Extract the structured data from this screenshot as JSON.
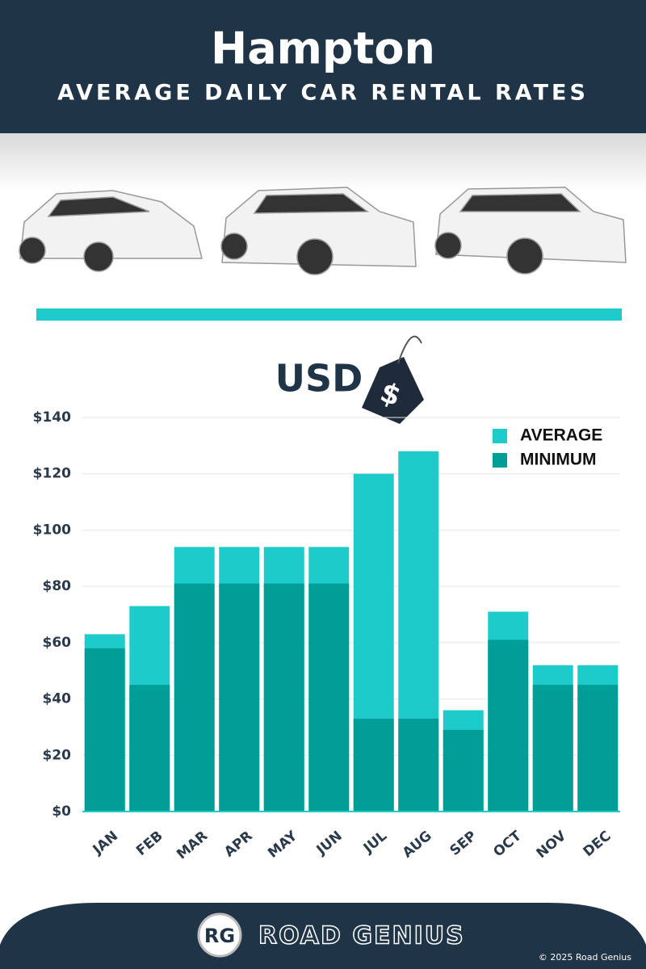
{
  "chart_data": {
    "type": "bar",
    "title": "Hampton",
    "subtitle": "AVERAGE DAILY CAR RENTAL RATES",
    "unit_label": "USD",
    "currency_symbol": "$",
    "categories": [
      "JAN",
      "FEB",
      "MAR",
      "APR",
      "MAY",
      "JUN",
      "JUL",
      "AUG",
      "SEP",
      "OCT",
      "NOV",
      "DEC"
    ],
    "series": [
      {
        "name": "AVERAGE",
        "color": "#1ecbcb",
        "values": [
          63,
          73,
          94,
          94,
          94,
          94,
          120,
          128,
          36,
          71,
          52,
          52
        ]
      },
      {
        "name": "MINIMUM",
        "color": "#009e96",
        "values": [
          58,
          45,
          81,
          81,
          81,
          81,
          33,
          33,
          29,
          61,
          45,
          45
        ]
      }
    ],
    "ylim": [
      0,
      140
    ],
    "yticks": [
      {
        "value": 0,
        "label": "$0"
      },
      {
        "value": 20,
        "label": "$20"
      },
      {
        "value": 40,
        "label": "$40"
      },
      {
        "value": 60,
        "label": "$60"
      },
      {
        "value": 80,
        "label": "$80"
      },
      {
        "value": 100,
        "label": "$100"
      },
      {
        "value": 120,
        "label": "$120"
      },
      {
        "value": 140,
        "label": "$140"
      }
    ],
    "grid": true,
    "legend": "top-right"
  },
  "footer": {
    "logo": "RG",
    "brand": "ROAD GENIUS",
    "copyright": "© 2025 Road Genius"
  }
}
